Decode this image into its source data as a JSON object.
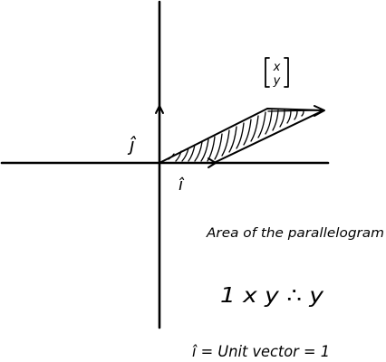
{
  "vector_label": {
    "top": "x",
    "bottom": "y"
  },
  "labels": {
    "j_hat": "ĵ",
    "i_hat": "î"
  },
  "notes": {
    "area_title": "Area of the parallelogram",
    "area_formula": "1 x y  ∴ y",
    "unit_def": "î = Unit vector = 1"
  },
  "colors": {
    "ink": "#000000",
    "background": "#ffffff"
  }
}
